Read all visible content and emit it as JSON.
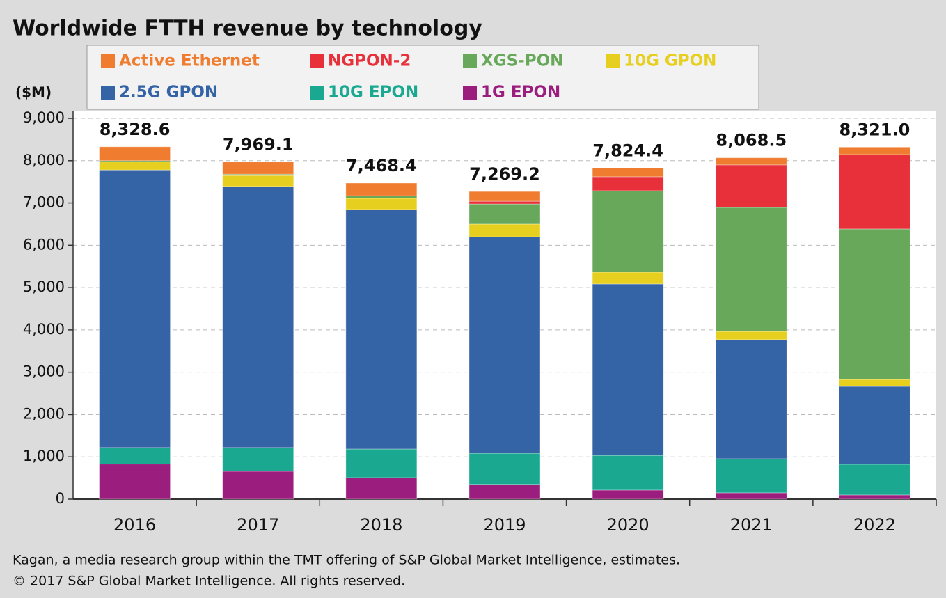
{
  "chart_data": {
    "type": "stacked-bar",
    "title": "Worldwide FTTH revenue by technology",
    "y_label": "($M)",
    "categories": [
      "2016",
      "2017",
      "2018",
      "2019",
      "2020",
      "2021",
      "2022"
    ],
    "series": [
      {
        "name": "Active Ethernet",
        "color": "#f07c30",
        "values": [
          328.6,
          290,
          300,
          230,
          204,
          168,
          176
        ]
      },
      {
        "name": "NGPON-2",
        "color": "#e8303a",
        "values": [
          0,
          0,
          0,
          65,
          330,
          1005,
          1760
        ]
      },
      {
        "name": "XGS-PON",
        "color": "#68a85a",
        "values": [
          30,
          30,
          60,
          475,
          1925,
          2930,
          3555
        ]
      },
      {
        "name": "10G GPON",
        "color": "#e6cf1e",
        "values": [
          190,
          260,
          265,
          300,
          280,
          195,
          165
        ]
      },
      {
        "name": "2.5G GPON",
        "color": "#3464a6",
        "values": [
          6560,
          6170,
          5660,
          5115,
          4050,
          2815,
          1840
        ]
      },
      {
        "name": "10G EPON",
        "color": "#1aa891",
        "values": [
          390,
          560,
          675,
          735,
          820,
          805,
          725
        ]
      },
      {
        "name": "1G EPON",
        "color": "#9b1d7e",
        "values": [
          830,
          660,
          510,
          350,
          215,
          150,
          100
        ]
      }
    ],
    "totals": [
      8328.6,
      7969.1,
      7468.4,
      7269.2,
      7824.4,
      8068.5,
      8321.0
    ],
    "totals_labels": [
      "8,328.6",
      "7,969.1",
      "7,468.4",
      "7,269.2",
      "7,824.4",
      "8,068.5",
      "8,321.0"
    ],
    "ylim": [
      0,
      9000
    ],
    "yticks": [
      0,
      {
        "value": 1000,
        "label": "1,000"
      },
      {
        "value": 2000,
        "label": "2,000"
      },
      {
        "value": 3000,
        "label": "3,000"
      },
      {
        "value": 4000,
        "label": "4,000"
      },
      {
        "value": 5000,
        "label": "5,000"
      },
      {
        "value": 6000,
        "label": "6,000"
      },
      {
        "value": 7000,
        "label": "7,000"
      },
      {
        "value": 8000,
        "label": "8,000"
      },
      {
        "value": 9000,
        "label": "9,000"
      }
    ],
    "grid": true,
    "notes": [
      "Kagan, a media research group within the TMT offering of S&P Global Market Intelligence, estimates.",
      "© 2017 S&P Global Market Intelligence. All rights reserved."
    ]
  }
}
